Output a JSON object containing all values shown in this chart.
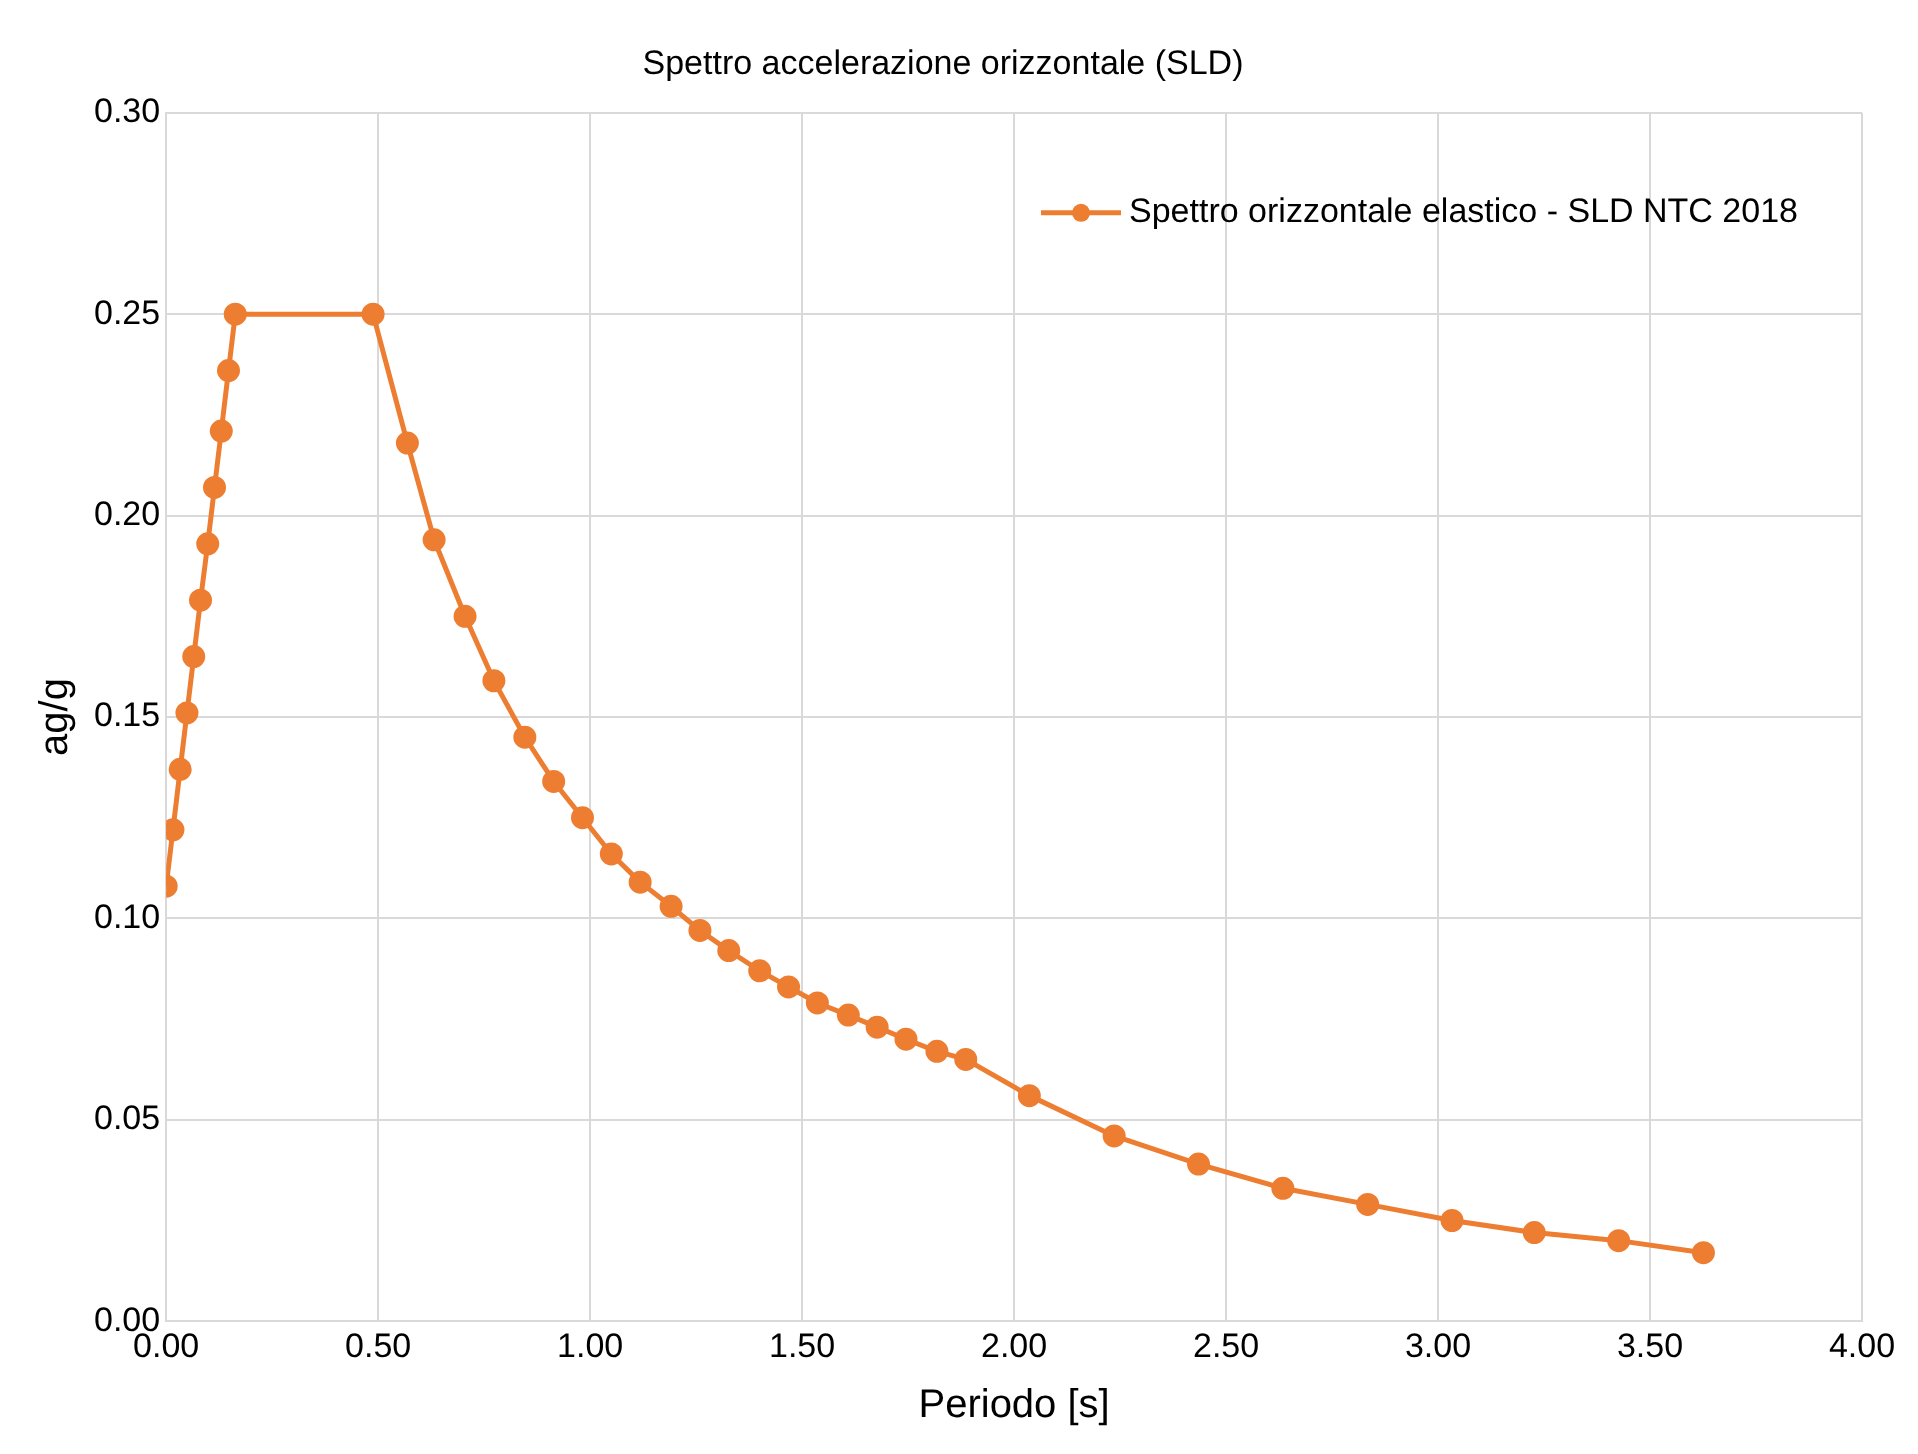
{
  "chart_data": {
    "type": "line",
    "title": "Spettro accelerazione orizzontale (SLD)",
    "xlabel": "Periodo [s]",
    "ylabel": "ag/g",
    "series": [
      {
        "name": "Spettro orizzontale elastico - SLD NTC 2018",
        "color": "#ed7d31",
        "x": [
          0,
          0.016,
          0.033,
          0.049,
          0.065,
          0.081,
          0.098,
          0.114,
          0.13,
          0.147,
          0.163,
          0.488,
          0.569,
          0.632,
          0.705,
          0.773,
          0.846,
          0.914,
          0.982,
          1.05,
          1.118,
          1.191,
          1.259,
          1.327,
          1.4,
          1.468,
          1.536,
          1.609,
          1.677,
          1.745,
          1.818,
          1.886,
          2.036,
          2.236,
          2.435,
          2.634,
          2.834,
          3.033,
          3.227,
          3.426,
          3.626
        ],
        "values": [
          0.108,
          0.122,
          0.137,
          0.151,
          0.165,
          0.179,
          0.193,
          0.207,
          0.221,
          0.236,
          0.25,
          0.25,
          0.218,
          0.194,
          0.175,
          0.159,
          0.145,
          0.134,
          0.125,
          0.116,
          0.109,
          0.103,
          0.097,
          0.092,
          0.087,
          0.083,
          0.079,
          0.076,
          0.073,
          0.07,
          0.067,
          0.065,
          0.056,
          0.046,
          0.039,
          0.033,
          0.029,
          0.025,
          0.022,
          0.02,
          0.017
        ]
      }
    ],
    "xlim": [
      0,
      4
    ],
    "xticks": [
      {
        "value": 0,
        "label": "0.00"
      },
      {
        "value": 0.5,
        "label": "0.50"
      },
      {
        "value": 1,
        "label": "1.00"
      },
      {
        "value": 1.5,
        "label": "1.50"
      },
      {
        "value": 2,
        "label": "2.00"
      },
      {
        "value": 2.5,
        "label": "2.50"
      },
      {
        "value": 3,
        "label": "3.00"
      },
      {
        "value": 3.5,
        "label": "3.50"
      },
      {
        "value": 4,
        "label": "4.00"
      }
    ],
    "ylim": [
      0,
      0.3
    ],
    "yticks": [
      {
        "value": 0,
        "label": "0.00"
      },
      {
        "value": 0.05,
        "label": "0.05"
      },
      {
        "value": 0.1,
        "label": "0.10"
      },
      {
        "value": 0.15,
        "label": "0.15"
      },
      {
        "value": 0.2,
        "label": "0.20"
      },
      {
        "value": 0.25,
        "label": "0.25"
      },
      {
        "value": 0.3,
        "label": "0.30"
      }
    ],
    "grid": true,
    "legend": "top right",
    "marker": "circle",
    "line_style": "solid"
  }
}
